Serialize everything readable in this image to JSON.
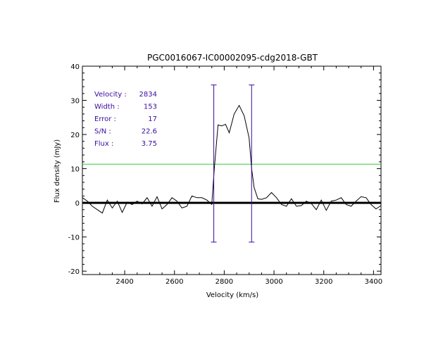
{
  "chart_data": {
    "type": "line",
    "title": "PGC0016067-IC00002095-cdg2018-GBT",
    "xlabel": "Velocity (km/s)",
    "ylabel": "Flux density (mJy)",
    "xlim": [
      2230,
      3430
    ],
    "ylim": [
      -21,
      40
    ],
    "xticks": [
      2400,
      2600,
      2800,
      3000,
      3200,
      3400
    ],
    "yticks": [
      -20,
      -10,
      0,
      10,
      20,
      30,
      40
    ],
    "grid": false,
    "colors": {
      "spectrum": "#000000",
      "baseline": "#000000",
      "threshold": "#33cc33",
      "markers": "#3a0aa0",
      "annotation_text": "#3a0aa0"
    },
    "annotation": [
      {
        "label": "Velocity :",
        "value": "2834"
      },
      {
        "label": "Width :",
        "value": "153"
      },
      {
        "label": "Error :",
        "value": "17"
      },
      {
        "label": "S/N :",
        "value": "22.6"
      },
      {
        "label": "Flux :",
        "value": "3.75"
      }
    ],
    "threshold_level": 11.3,
    "baseline_level": 0,
    "width_markers": [
      {
        "x": 2758,
        "y_top": 34.5,
        "y_bottom": -11.5
      },
      {
        "x": 2910,
        "y_top": 34.5,
        "y_bottom": -11.5
      }
    ],
    "series": [
      {
        "x": [
          2230,
          2250,
          2270,
          2290,
          2310,
          2330,
          2350,
          2370,
          2390,
          2410,
          2430,
          2450,
          2470,
          2490,
          2510,
          2530,
          2550,
          2570,
          2590,
          2610,
          2630,
          2650,
          2670,
          2690,
          2710,
          2730,
          2750,
          2760,
          2775,
          2790,
          2805,
          2820,
          2840,
          2860,
          2880,
          2900,
          2910,
          2920,
          2935,
          2950,
          2970,
          2990,
          3010,
          3030,
          3050,
          3070,
          3090,
          3110,
          3130,
          3150,
          3170,
          3190,
          3210,
          3230,
          3250,
          3270,
          3290,
          3310,
          3330,
          3350,
          3370,
          3390,
          3410,
          3430
        ],
        "values": [
          1.5,
          0.5,
          -1.0,
          -2.0,
          -3.0,
          0.8,
          -1.5,
          0.5,
          -2.8,
          0.2,
          -0.5,
          0.5,
          -0.3,
          1.5,
          -1.0,
          1.8,
          -1.8,
          -0.5,
          1.5,
          0.5,
          -1.5,
          -1.0,
          2.0,
          1.5,
          1.5,
          0.8,
          -0.5,
          10.0,
          22.8,
          22.5,
          23.0,
          20.5,
          26.0,
          28.5,
          25.5,
          19.0,
          10.0,
          4.5,
          1.2,
          1.0,
          1.5,
          3.0,
          1.5,
          -0.5,
          -1.0,
          1.2,
          -1.0,
          -0.8,
          0.5,
          -0.2,
          -2.0,
          0.8,
          -2.2,
          0.5,
          0.8,
          1.5,
          -0.5,
          -1.0,
          0.5,
          1.8,
          1.5,
          -0.5,
          -1.8,
          -0.8
        ]
      }
    ]
  }
}
